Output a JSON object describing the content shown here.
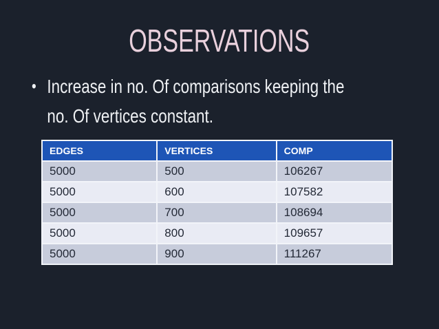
{
  "slide": {
    "title": "OBSERVATIONS",
    "bullet": {
      "marker": "•",
      "line1": "Increase in no. Of comparisons keeping the",
      "line2": "no. Of vertices constant."
    },
    "table": {
      "headers": [
        "EDGES",
        "VERTICES",
        "COMP"
      ],
      "rows": [
        [
          "5000",
          "500",
          "106267"
        ],
        [
          "5000",
          "600",
          "107582"
        ],
        [
          "5000",
          "700",
          "108694"
        ],
        [
          "5000",
          "800",
          "109657"
        ],
        [
          "5000",
          "900",
          "111267"
        ]
      ]
    },
    "colors": {
      "background": "#1b212c",
      "title": "#e9d0dc",
      "body_text": "#eff1f4",
      "header_bg": "#1e55b6",
      "header_text": "#ffffff",
      "row_odd": "#c7ccdb",
      "row_even": "#e9ebf4",
      "row_text": "#232936"
    }
  }
}
